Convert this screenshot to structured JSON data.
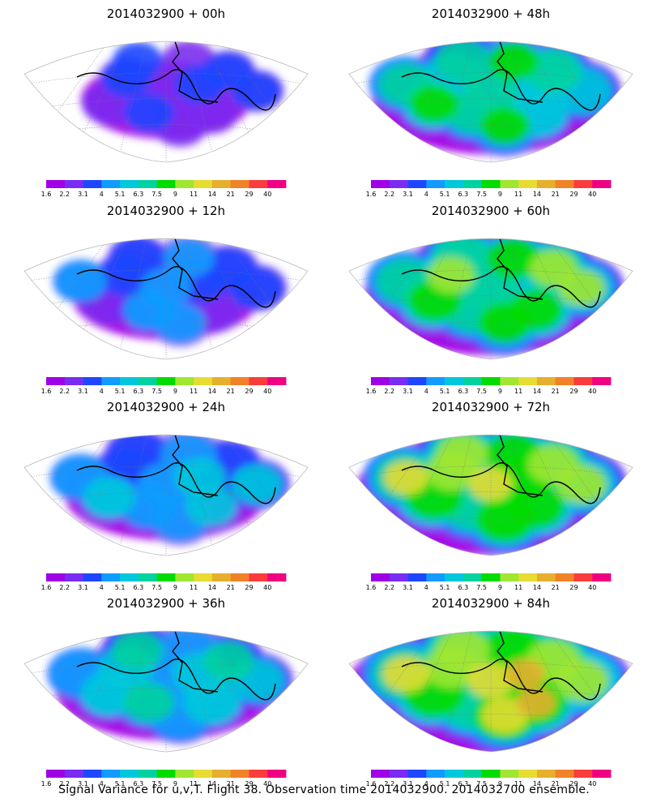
{
  "caption": "Signal Variance for u,v,T. Flight 38. Observation time 2014032900. 2014032700 ensemble.",
  "colorbar": {
    "labels": [
      "1.6",
      "2.2",
      "3.1",
      "4",
      "5.1",
      "6.3",
      "7.5",
      "9",
      "11",
      "14",
      "21",
      "29",
      "40"
    ],
    "colors": [
      "#a000e6",
      "#7a2cf0",
      "#1e46ff",
      "#129cff",
      "#00c8dc",
      "#00d2a0",
      "#00dc00",
      "#a0e632",
      "#e6dc32",
      "#e6af2d",
      "#f08228",
      "#fa3c3c",
      "#f00082"
    ]
  },
  "panels": [
    {
      "title": "2014032900 + 00h",
      "lead_hours": 0,
      "intensity": 0
    },
    {
      "title": "2014032900 + 48h",
      "lead_hours": 48,
      "intensity": 4
    },
    {
      "title": "2014032900 + 12h",
      "lead_hours": 12,
      "intensity": 1
    },
    {
      "title": "2014032900 + 60h",
      "lead_hours": 60,
      "intensity": 5
    },
    {
      "title": "2014032900 + 24h",
      "lead_hours": 24,
      "intensity": 2
    },
    {
      "title": "2014032900 + 72h",
      "lead_hours": 72,
      "intensity": 6
    },
    {
      "title": "2014032900 + 36h",
      "lead_hours": 36,
      "intensity": 3
    },
    {
      "title": "2014032900 + 84h",
      "lead_hours": 84,
      "intensity": 7
    }
  ]
}
